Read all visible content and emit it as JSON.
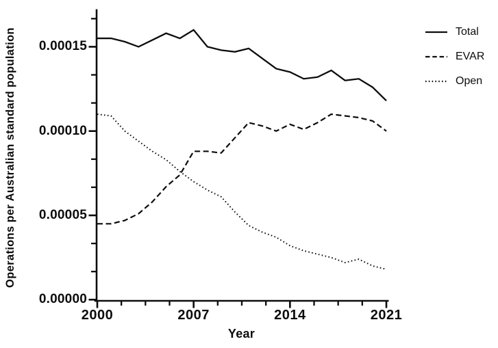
{
  "figure": {
    "y_axis_title": "Operations per Australian standard population",
    "x_axis_title": "Year"
  },
  "axes": {
    "y_tick_labels": [
      "0.00015",
      "0.00010",
      "0.00005",
      "0.00000"
    ],
    "x_tick_labels": [
      "2000",
      "2007",
      "2014",
      "2021"
    ]
  },
  "legend": {
    "items": [
      {
        "label": "Total",
        "line_style": "solid"
      },
      {
        "label": "EVAR",
        "line_style": "dashed"
      },
      {
        "label": "Open",
        "line_style": "dotted"
      }
    ]
  },
  "colors": {
    "line": "#0c0c0c",
    "background": "#ffffff"
  },
  "chart_data": {
    "type": "line",
    "title": "",
    "xlabel": "Year",
    "ylabel": "Operations per Australian standard population",
    "x": [
      2000,
      2001,
      2002,
      2003,
      2004,
      2005,
      2006,
      2007,
      2008,
      2009,
      2010,
      2011,
      2012,
      2013,
      2014,
      2015,
      2016,
      2017,
      2018,
      2019,
      2020,
      2021
    ],
    "series": [
      {
        "name": "Total",
        "line_style": "solid",
        "values": [
          0.000155,
          0.000155,
          0.000153,
          0.00015,
          0.000154,
          0.000158,
          0.000155,
          0.00016,
          0.00015,
          0.000148,
          0.000147,
          0.000149,
          0.000143,
          0.000137,
          0.000135,
          0.000131,
          0.000132,
          0.000136,
          0.00013,
          0.000131,
          0.000126,
          0.000118
        ]
      },
      {
        "name": "EVAR",
        "line_style": "dashed",
        "values": [
          4.5e-05,
          4.5e-05,
          4.7e-05,
          5.1e-05,
          5.8e-05,
          6.7e-05,
          7.4e-05,
          8.8e-05,
          8.8e-05,
          8.7e-05,
          9.6e-05,
          0.000105,
          0.000103,
          0.0001,
          0.000104,
          0.000101,
          0.000105,
          0.00011,
          0.000109,
          0.000108,
          0.000106,
          0.0001
        ]
      },
      {
        "name": "Open",
        "line_style": "dotted",
        "values": [
          0.00011,
          0.000109,
          0.0001,
          9.4e-05,
          8.8e-05,
          8.3e-05,
          7.6e-05,
          7e-05,
          6.5e-05,
          6.1e-05,
          5.2e-05,
          4.4e-05,
          4e-05,
          3.7e-05,
          3.2e-05,
          2.9e-05,
          2.7e-05,
          2.5e-05,
          2.2e-05,
          2.4e-05,
          2e-05,
          1.8e-05
        ]
      }
    ],
    "xlim": [
      2000,
      2021
    ],
    "ylim": [
      0,
      0.000172
    ],
    "x_major_ticks": [
      2000,
      2007,
      2014,
      2021
    ],
    "y_major_ticks": [
      0,
      5e-05,
      0.0001,
      0.00015
    ],
    "x_minor_tick_interval": 1.75,
    "y_minor_tick_interval": 1.66667e-05,
    "grid": false,
    "legend_position": "top-right"
  }
}
